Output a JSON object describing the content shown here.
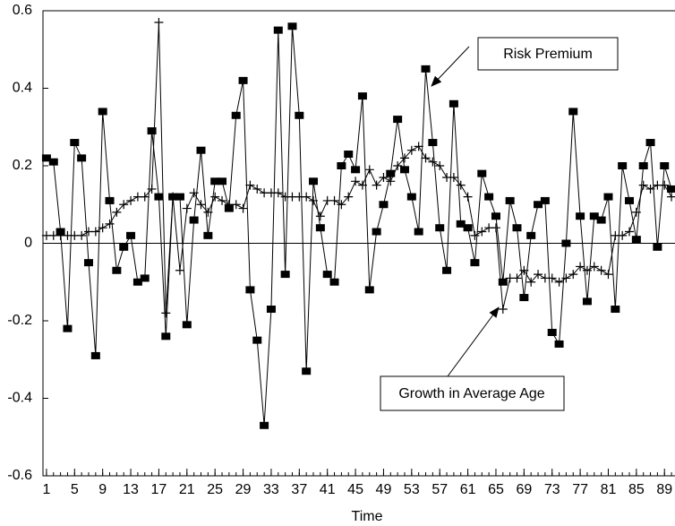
{
  "chart_data": {
    "type": "line",
    "x_label": "Time",
    "x": [
      1,
      2,
      3,
      4,
      5,
      6,
      7,
      8,
      9,
      10,
      11,
      12,
      13,
      14,
      15,
      16,
      17,
      18,
      19,
      20,
      21,
      22,
      23,
      24,
      25,
      26,
      27,
      28,
      29,
      30,
      31,
      32,
      33,
      34,
      35,
      36,
      37,
      38,
      39,
      40,
      41,
      42,
      43,
      44,
      45,
      46,
      47,
      48,
      49,
      50,
      51,
      52,
      53,
      54,
      55,
      56,
      57,
      58,
      59,
      60,
      61,
      62,
      63,
      64,
      65,
      66,
      67,
      68,
      69,
      70,
      71,
      72,
      73,
      74,
      75,
      76,
      77,
      78,
      79,
      80,
      81,
      82,
      83,
      84,
      85,
      86,
      87,
      88,
      89,
      90
    ],
    "series": [
      {
        "name": "Risk Premium",
        "color": "#000000",
        "marker": "square",
        "values": [
          0.22,
          0.21,
          0.03,
          -0.22,
          0.26,
          0.22,
          -0.05,
          -0.29,
          0.34,
          0.11,
          -0.07,
          -0.01,
          0.02,
          -0.1,
          -0.09,
          0.29,
          0.12,
          -0.24,
          0.12,
          0.12,
          -0.21,
          0.06,
          0.24,
          0.02,
          0.16,
          0.16,
          0.09,
          0.33,
          0.42,
          -0.12,
          -0.25,
          -0.47,
          -0.17,
          0.55,
          -0.08,
          0.56,
          0.33,
          -0.33,
          0.16,
          0.04,
          -0.08,
          -0.1,
          0.2,
          0.23,
          0.19,
          0.38,
          -0.12,
          0.03,
          0.1,
          0.18,
          0.32,
          0.19,
          0.12,
          0.03,
          0.45,
          0.26,
          0.04,
          -0.07,
          0.36,
          0.05,
          0.04,
          -0.05,
          0.18,
          0.12,
          0.07,
          -0.1,
          0.11,
          0.04,
          -0.14,
          0.02,
          0.1,
          0.11,
          -0.23,
          -0.26,
          0.0,
          0.34,
          0.07,
          -0.15,
          0.07,
          0.06,
          0.12,
          -0.17,
          0.2,
          0.11,
          0.01,
          0.2,
          0.26,
          -0.01,
          0.2,
          0.14
        ]
      },
      {
        "name": "Growth in Average Age",
        "color": "#000000",
        "marker": "plus",
        "values": [
          0.02,
          0.02,
          0.02,
          0.02,
          0.02,
          0.02,
          0.03,
          0.03,
          0.04,
          0.05,
          0.08,
          0.1,
          0.11,
          0.12,
          0.12,
          0.14,
          0.57,
          -0.18,
          0.12,
          -0.07,
          0.09,
          0.13,
          0.1,
          0.08,
          0.12,
          0.11,
          0.1,
          0.1,
          0.09,
          0.15,
          0.14,
          0.13,
          0.13,
          0.13,
          0.12,
          0.12,
          0.12,
          0.12,
          0.11,
          0.07,
          0.11,
          0.11,
          0.1,
          0.12,
          0.16,
          0.15,
          0.19,
          0.15,
          0.17,
          0.16,
          0.2,
          0.22,
          0.24,
          0.25,
          0.22,
          0.21,
          0.2,
          0.17,
          0.17,
          0.15,
          0.12,
          0.02,
          0.03,
          0.04,
          0.04,
          -0.17,
          -0.09,
          -0.09,
          -0.07,
          -0.1,
          -0.08,
          -0.09,
          -0.09,
          -0.1,
          -0.09,
          -0.08,
          -0.06,
          -0.07,
          -0.06,
          -0.07,
          -0.08,
          0.02,
          0.02,
          0.03,
          0.08,
          0.15,
          0.14,
          0.15,
          0.15,
          0.12
        ]
      }
    ],
    "xlim": [
      0.5,
      90.5
    ],
    "xticks": [
      1,
      5,
      9,
      13,
      17,
      21,
      25,
      29,
      33,
      37,
      41,
      45,
      49,
      53,
      57,
      61,
      65,
      69,
      73,
      77,
      81,
      85,
      89
    ],
    "ylim": [
      -0.6,
      0.6
    ],
    "yticks": [
      0.6,
      0.4,
      0.2,
      0,
      -0.2,
      -0.4,
      -0.6
    ],
    "zero_line": true,
    "annotations": [
      {
        "text": "Risk Premium",
        "series": 0
      },
      {
        "text": "Growth in Average Age",
        "series": 1
      }
    ]
  }
}
